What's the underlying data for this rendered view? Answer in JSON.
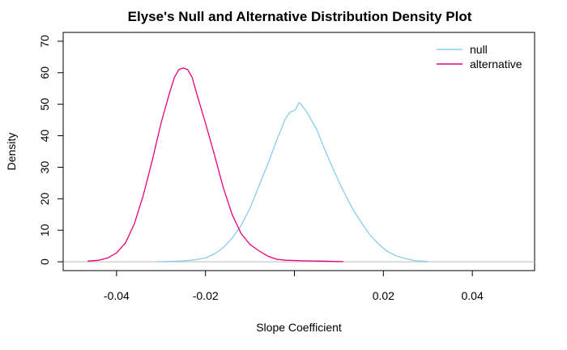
{
  "chart_data": {
    "type": "line",
    "title": "Elyse's Null and Alternative Distribution Density Plot",
    "xlabel": "Slope Coefficient",
    "ylabel": "Density",
    "xlim": [
      -0.052,
      0.054
    ],
    "ylim": [
      -2.8,
      72.8
    ],
    "x_ticks": [
      -0.04,
      -0.02,
      0.0,
      0.02,
      0.04
    ],
    "x_tick_labels": [
      "-0.04",
      "-0.02",
      "0.02",
      "0.04"
    ],
    "x_tick_label_values": [
      -0.04,
      -0.02,
      0.02,
      0.04
    ],
    "y_ticks": [
      0,
      10,
      20,
      30,
      40,
      50,
      60,
      70
    ],
    "y_tick_labels": [
      "0",
      "10",
      "20",
      "30",
      "40",
      "50",
      "60",
      "70"
    ],
    "grid": false,
    "baseline": {
      "y": 0,
      "color": "#bebebe"
    },
    "legend": {
      "position": "top-right",
      "box": false
    },
    "series": [
      {
        "name": "null",
        "color": "#87ceeb",
        "points": [
          [
            -0.031,
            0
          ],
          [
            -0.026,
            0.2
          ],
          [
            -0.023,
            0.5
          ],
          [
            -0.02,
            1.2
          ],
          [
            -0.018,
            2.5
          ],
          [
            -0.016,
            4.5
          ],
          [
            -0.014,
            7.5
          ],
          [
            -0.012,
            11.5
          ],
          [
            -0.01,
            17.0
          ],
          [
            -0.008,
            24.0
          ],
          [
            -0.006,
            31.0
          ],
          [
            -0.004,
            38.5
          ],
          [
            -0.002,
            45.5
          ],
          [
            -0.001,
            47.5
          ],
          [
            0.0,
            48.0
          ],
          [
            0.0005,
            49.0
          ],
          [
            0.001,
            50.5
          ],
          [
            0.0015,
            50.0
          ],
          [
            0.003,
            47.0
          ],
          [
            0.005,
            42.0
          ],
          [
            0.007,
            35.0
          ],
          [
            0.009,
            28.5
          ],
          [
            0.011,
            22.5
          ],
          [
            0.013,
            17.0
          ],
          [
            0.015,
            12.5
          ],
          [
            0.017,
            8.5
          ],
          [
            0.019,
            5.5
          ],
          [
            0.021,
            3.2
          ],
          [
            0.023,
            1.8
          ],
          [
            0.025,
            1.0
          ],
          [
            0.027,
            0.4
          ],
          [
            0.03,
            0.1
          ]
        ]
      },
      {
        "name": "alternative",
        "color": "#e6007e",
        "points": [
          [
            -0.0465,
            0.2
          ],
          [
            -0.044,
            0.5
          ],
          [
            -0.042,
            1.2
          ],
          [
            -0.04,
            2.8
          ],
          [
            -0.038,
            6.0
          ],
          [
            -0.036,
            12.0
          ],
          [
            -0.034,
            21.0
          ],
          [
            -0.032,
            32.0
          ],
          [
            -0.03,
            44.0
          ],
          [
            -0.028,
            54.0
          ],
          [
            -0.027,
            58.5
          ],
          [
            -0.026,
            61.0
          ],
          [
            -0.025,
            61.5
          ],
          [
            -0.024,
            61.0
          ],
          [
            -0.023,
            58.5
          ],
          [
            -0.022,
            53.5
          ],
          [
            -0.02,
            44.0
          ],
          [
            -0.018,
            34.0
          ],
          [
            -0.016,
            23.5
          ],
          [
            -0.014,
            15.0
          ],
          [
            -0.012,
            9.0
          ],
          [
            -0.01,
            5.5
          ],
          [
            -0.008,
            3.5
          ],
          [
            -0.006,
            1.8
          ],
          [
            -0.004,
            0.8
          ],
          [
            -0.002,
            0.5
          ],
          [
            0.002,
            0.3
          ],
          [
            0.006,
            0.2
          ],
          [
            0.011,
            0.05
          ]
        ]
      }
    ]
  }
}
